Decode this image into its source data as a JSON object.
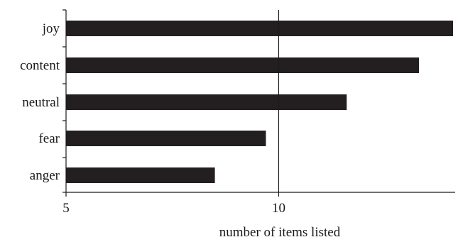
{
  "chart_data": {
    "type": "bar",
    "orientation": "horizontal",
    "categories": [
      "joy",
      "content",
      "neutral",
      "fear",
      "anger"
    ],
    "values": [
      14.1,
      13.3,
      11.6,
      9.7,
      8.5
    ],
    "xlabel": "number of items listed",
    "ylabel": "",
    "xlim": [
      5,
      14.15
    ],
    "xticks": [
      5,
      10
    ],
    "reference_line": 10,
    "grid": false,
    "legend": "none",
    "colors": {
      "bar": "#231f20",
      "axis": "#1a1a1a"
    }
  }
}
